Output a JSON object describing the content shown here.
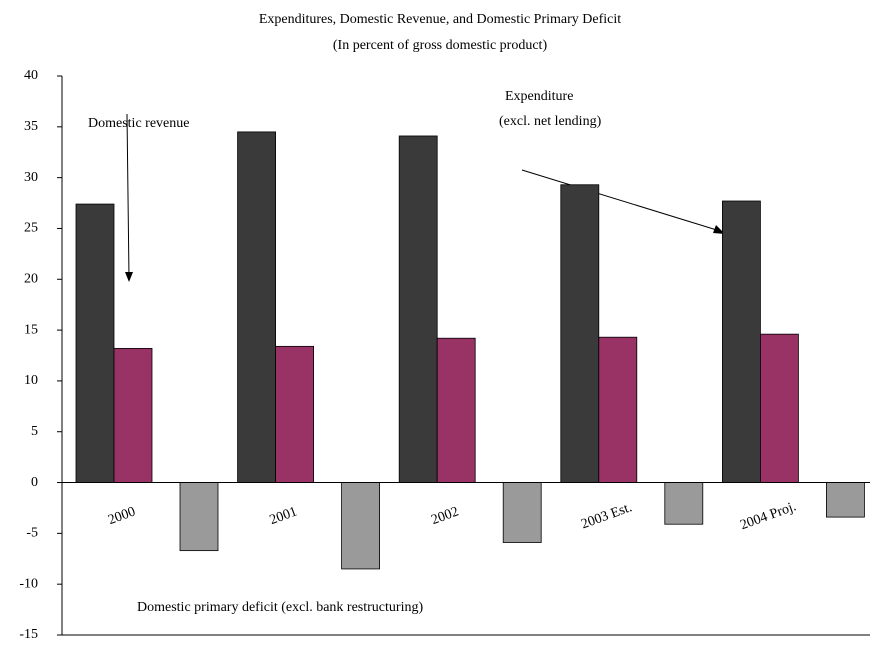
{
  "chart_data": {
    "type": "bar",
    "title": "Expenditures, Domestic Revenue, and Domestic Primary Deficit",
    "subtitle": "(In percent of gross domestic product)",
    "categories": [
      "2000",
      "2001",
      "2002",
      "2003 Est.",
      "2004 Proj."
    ],
    "series": [
      {
        "color": "#3a3a3a",
        "values": [
          27.4,
          34.5,
          34.1,
          29.3,
          27.7
        ]
      },
      {
        "color": "#993366",
        "values": [
          13.2,
          13.4,
          14.2,
          14.3,
          14.6
        ]
      },
      {
        "color": "#9a9a9a",
        "values": [
          -6.7,
          -8.5,
          -5.9,
          -4.1,
          -3.4
        ]
      }
    ],
    "annotations": [
      "Domestic revenue",
      "Expenditure",
      "(excl. net lending)",
      "Domestic primary deficit (excl. bank restructuring)"
    ],
    "ylim": [
      -15,
      40
    ],
    "yticks": [
      -15,
      -10,
      -5,
      0,
      5,
      10,
      15,
      20,
      25,
      30,
      35,
      40
    ],
    "grid": false
  }
}
